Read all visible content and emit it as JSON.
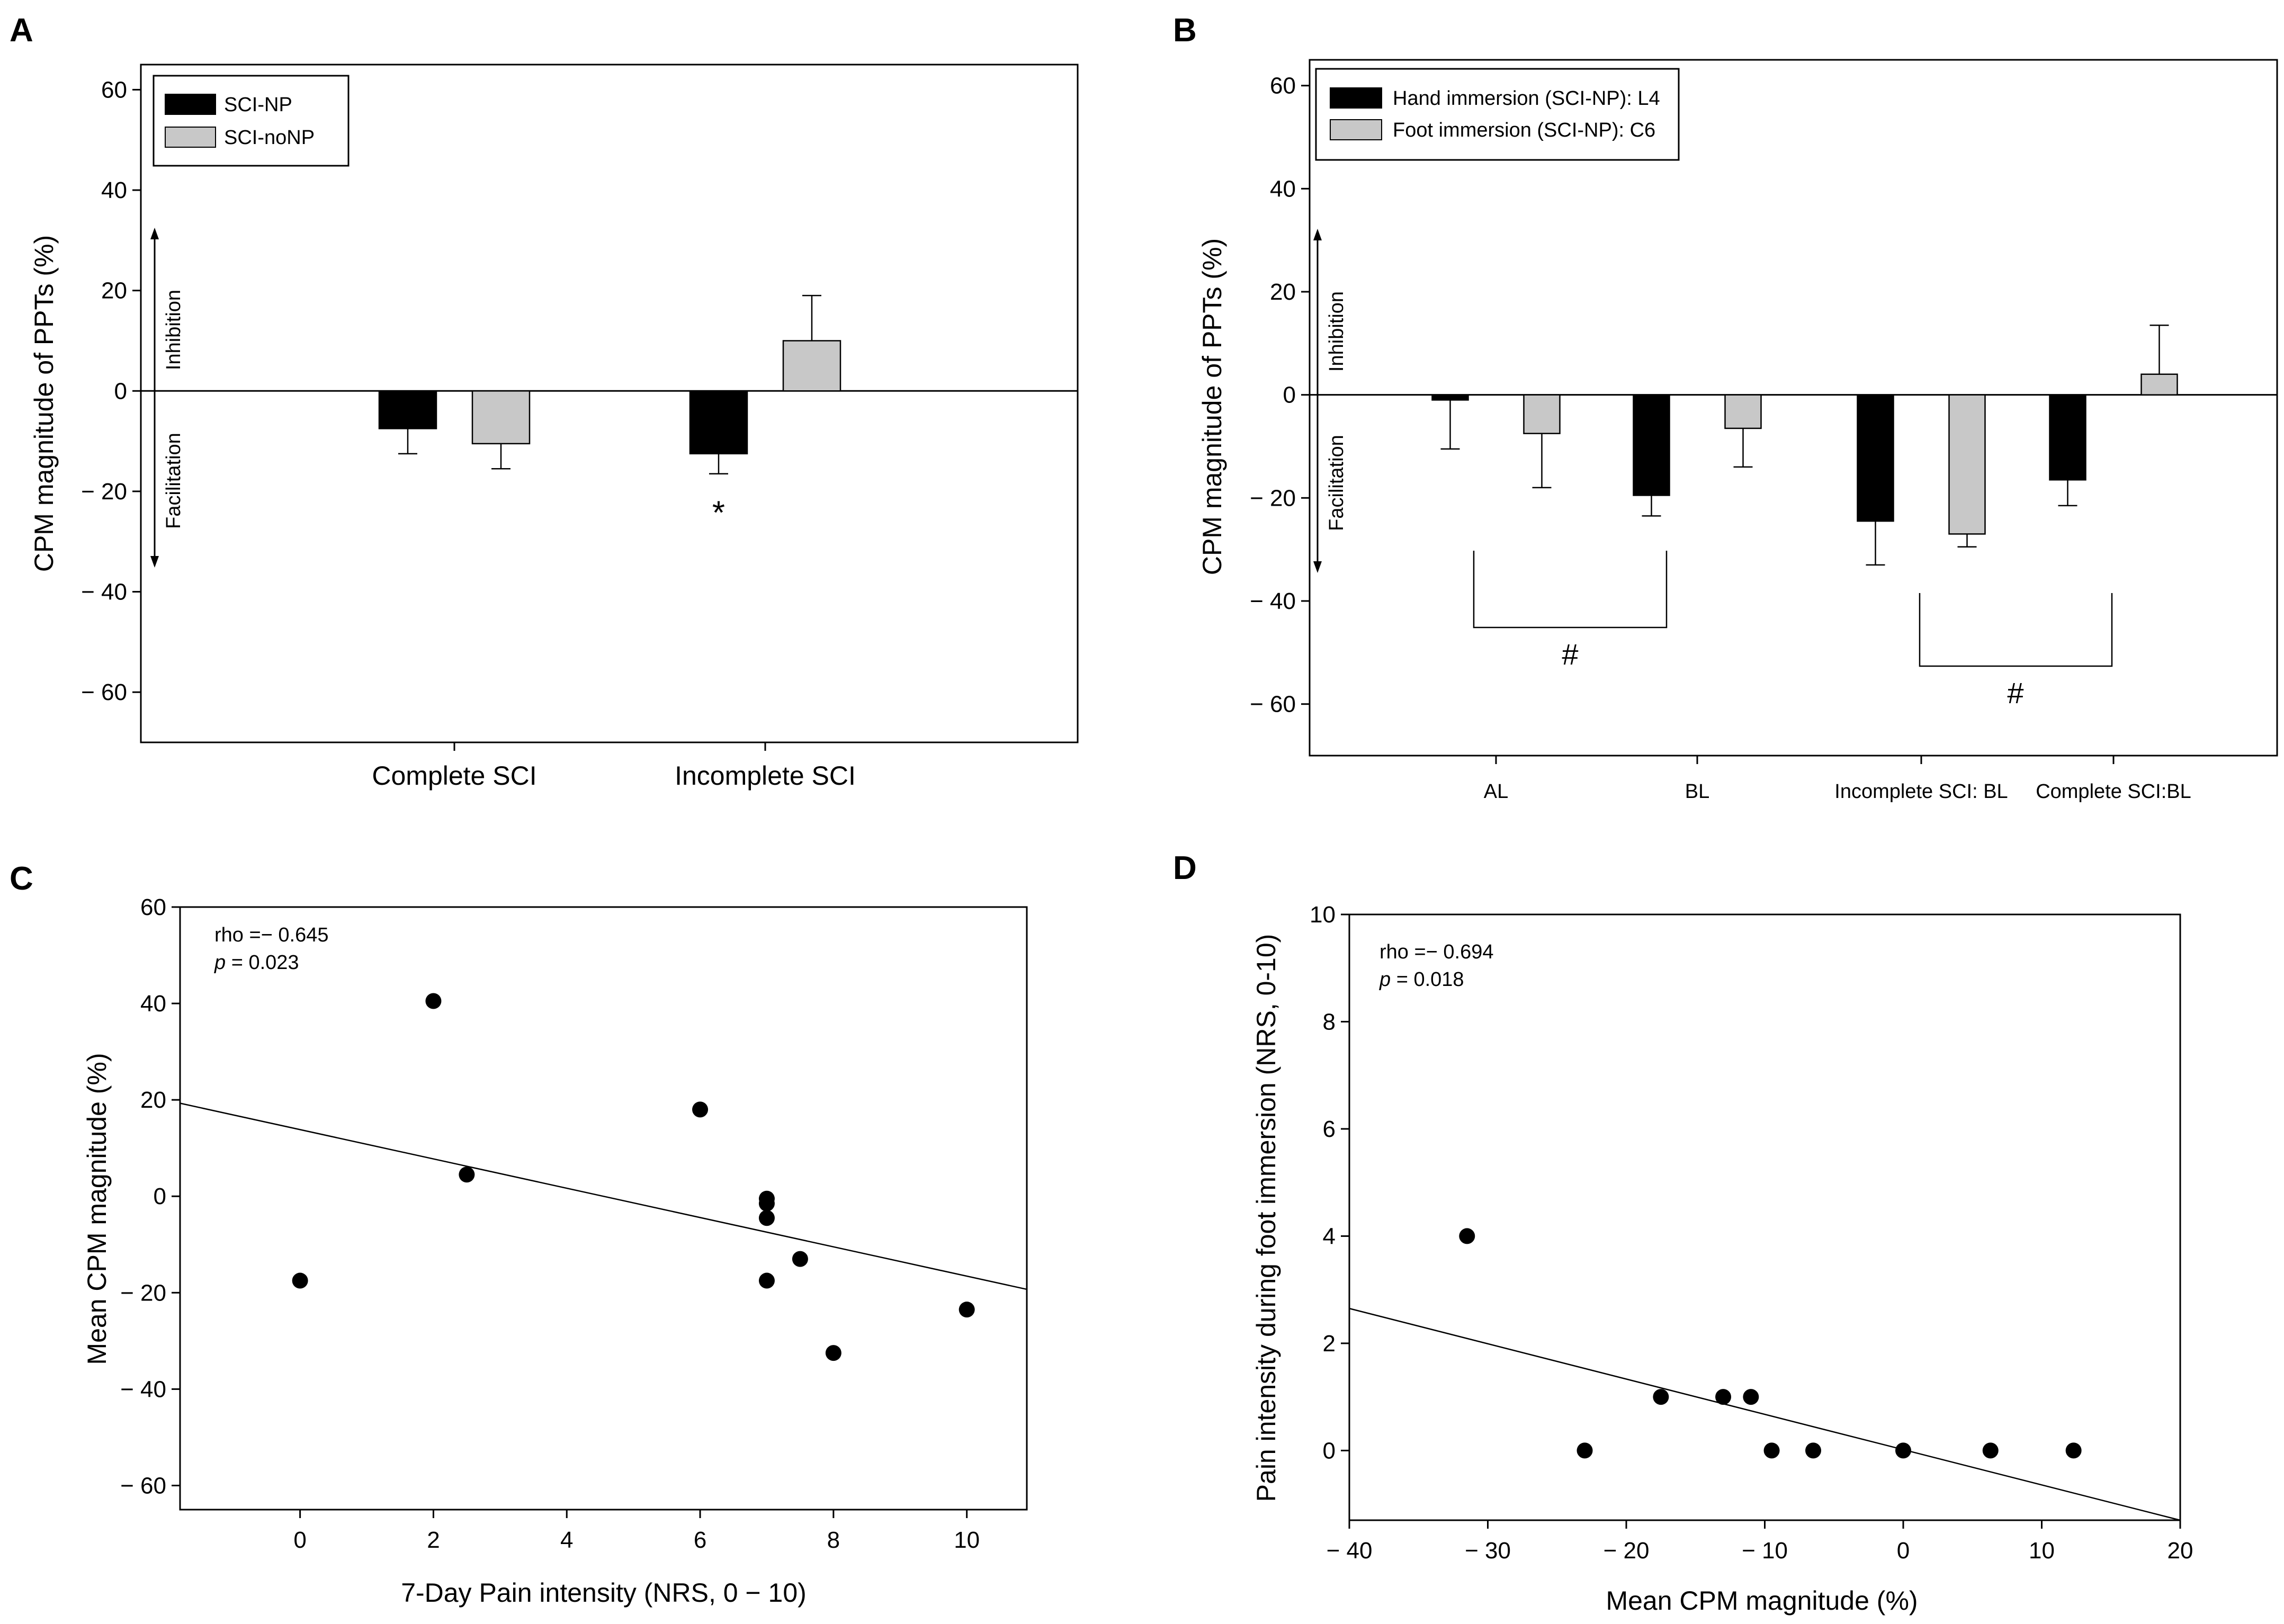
{
  "chart_data": [
    {
      "panel": "A",
      "type": "bar",
      "ylabel": "CPM magnitude of PPTs (%)",
      "categories": [
        "Complete SCI",
        "Incomplete SCI"
      ],
      "ylim": [
        -70,
        65
      ],
      "yticks": [
        60,
        40,
        20,
        0,
        -20,
        -40,
        -60
      ],
      "ytick_labels": [
        "60",
        "40",
        "20",
        "0",
        "− 20",
        "− 40",
        "− 60"
      ],
      "legend": [
        "SCI-NP",
        "SCI-noNP"
      ],
      "legend_position": "top-left",
      "series": [
        {
          "name": "SCI-NP",
          "color": "#000000",
          "values": [
            -7.5,
            -12.5
          ],
          "errors": [
            5,
            4
          ]
        },
        {
          "name": "SCI-noNP",
          "color": "#c8c8c8",
          "values": [
            -10.5,
            10
          ],
          "errors": [
            5,
            9
          ]
        }
      ],
      "direction_labels": {
        "up": "Inhibition",
        "down": "Facilitation"
      },
      "significance": [
        {
          "mark": "*",
          "category": 1,
          "series": 0
        }
      ]
    },
    {
      "panel": "B",
      "type": "bar",
      "ylabel": "CPM magnitude of PPTs (%)",
      "categories": [
        "AL",
        "BL",
        "Incomplete SCI: BL",
        "Complete SCI:BL"
      ],
      "ylim": [
        -70,
        65
      ],
      "yticks": [
        60,
        40,
        20,
        0,
        -20,
        -40,
        -60
      ],
      "ytick_labels": [
        "60",
        "40",
        "20",
        "0",
        "− 20",
        "− 40",
        "− 60"
      ],
      "legend": [
        "Hand immersion (SCI-NP): L4",
        "Foot immersion (SCI-NP): C6"
      ],
      "legend_position": "top-left",
      "series": [
        {
          "name": "Hand immersion (SCI-NP): L4",
          "color": "#000000",
          "values": [
            -1,
            -19.5,
            -24.5,
            -16.5
          ],
          "errors": [
            9.5,
            4,
            8.5,
            5
          ]
        },
        {
          "name": "Foot immersion (SCI-NP): C6",
          "color": "#c8c8c8",
          "values": [
            -7.5,
            -6.5,
            -27,
            4
          ],
          "errors": [
            10.5,
            7.5,
            2.5,
            9.5
          ]
        }
      ],
      "direction_labels": {
        "up": "Inhibition",
        "down": "Facilitation"
      },
      "brackets": [
        {
          "mark": "#",
          "from": 0,
          "to": 1
        },
        {
          "mark": "#",
          "from": 2,
          "to": 3
        }
      ]
    },
    {
      "panel": "C",
      "type": "scatter",
      "xlabel": "7-Day Pain intensity (NRS, 0 − 10)",
      "ylabel": "Mean CPM magnitude (%)",
      "xlim": [
        -1.8,
        10.9
      ],
      "ylim": [
        -65,
        60
      ],
      "xticks": [
        0,
        2,
        4,
        6,
        8,
        10
      ],
      "yticks": [
        60,
        40,
        20,
        0,
        -20,
        -40,
        -60
      ],
      "ytick_labels": [
        "60",
        "40",
        "20",
        "0",
        "− 20",
        "− 40",
        "− 60"
      ],
      "x": [
        0,
        2,
        2.5,
        6,
        7,
        7,
        7,
        7,
        7.5,
        8,
        10
      ],
      "y": [
        -17.5,
        40.5,
        4.5,
        18,
        -0.5,
        -1.5,
        -4.5,
        -17.5,
        -13,
        -32.5,
        -23.5
      ],
      "fit_line": {
        "x": [
          -1.8,
          10.9
        ],
        "y": [
          19.3,
          -19.3
        ]
      },
      "annotation": {
        "rho_label": "rho =− 0.645",
        "p_italic": "p",
        "p_rest": " = 0.023"
      }
    },
    {
      "panel": "D",
      "type": "scatter",
      "xlabel": "Mean CPM magnitude (%)",
      "ylabel": "Pain intensity during foot immersion (NRS, 0-10)",
      "xlim": [
        -40,
        20
      ],
      "ylim": [
        -1.3,
        10
      ],
      "xticks": [
        -40,
        -30,
        -20,
        -10,
        0,
        10,
        20
      ],
      "xtick_labels": [
        "− 40",
        "− 30",
        "− 20",
        "− 10",
        "0",
        "10",
        "20"
      ],
      "yticks": [
        0,
        2,
        4,
        6,
        8,
        10
      ],
      "x": [
        -31.5,
        -23,
        -17.5,
        -13,
        -11,
        -9.5,
        -6.5,
        0,
        6.3,
        12.3
      ],
      "y": [
        4,
        0,
        1,
        1,
        1,
        0,
        0,
        0,
        0,
        0
      ],
      "fit_line": {
        "x": [
          -40,
          20
        ],
        "y": [
          2.65,
          -1.3
        ]
      },
      "annotation": {
        "rho_label": "rho =− 0.694",
        "p_italic": "p",
        "p_rest": " = 0.018"
      }
    }
  ]
}
